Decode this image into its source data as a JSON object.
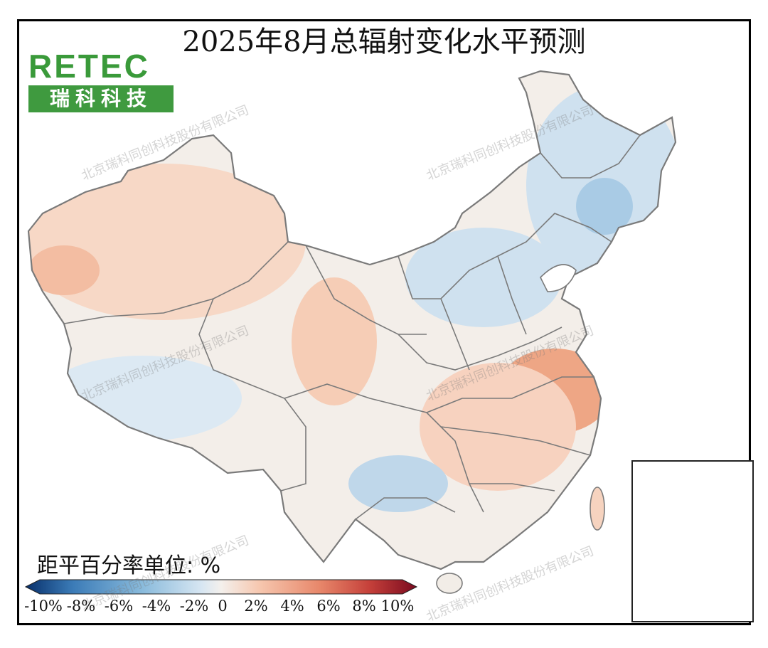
{
  "title": "2025年8月总辐射变化水平预测",
  "logo": {
    "word": "RETEC",
    "subtitle": "瑞科科技"
  },
  "watermark_text": "北京瑞科同创科技股份有限公司",
  "legend": {
    "unit_label": "距平百分率单位: %",
    "tick_labels": [
      "-10%",
      "-8%",
      "-6%",
      "-4%",
      "-2%",
      "0",
      "2%",
      "4%",
      "6%",
      "8%",
      "10%"
    ],
    "colors": [
      "#08306b",
      "#1d5b9a",
      "#3b7bb7",
      "#5f9dcb",
      "#8abbdc",
      "#b5d3e9",
      "#d7e6f2",
      "#ecf1f6",
      "#f7f1ed",
      "#fae0d3",
      "#f6c6ae",
      "#f2a98a",
      "#e8886b",
      "#d9634f",
      "#c5403a",
      "#a8202c",
      "#7a0a1f"
    ]
  },
  "colors": {
    "land_neutral": "#f3eee9",
    "land_warm": "#f7d8c6",
    "land_warm_strong": "#eea685",
    "land_cool": "#dce9f3",
    "land_cool_strong": "#a9cbe5",
    "border": "#7a7a7a"
  }
}
